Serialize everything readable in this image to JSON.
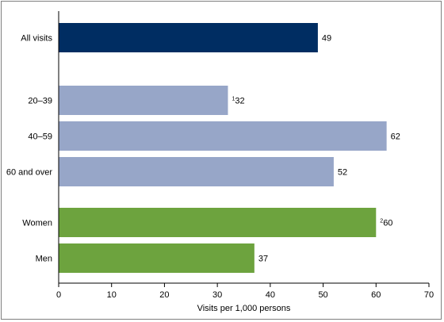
{
  "chart_data": {
    "type": "bar",
    "orientation": "horizontal",
    "categories": [
      "All visits",
      "20–39",
      "40–59",
      "60 and over",
      "Women",
      "Men"
    ],
    "values": [
      49,
      32,
      62,
      52,
      60,
      37
    ],
    "data_labels": [
      "49",
      "32",
      "62",
      "52",
      "60",
      "37"
    ],
    "label_superscripts": [
      "",
      "1",
      "",
      "",
      "2",
      ""
    ],
    "groups": [
      {
        "categories": [
          "All visits"
        ],
        "color": "#002d62"
      },
      {
        "categories": [
          "20–39",
          "40–59",
          "60 and over"
        ],
        "color": "#97a6c8"
      },
      {
        "categories": [
          "Women",
          "Men"
        ],
        "color": "#6da33e"
      }
    ],
    "xlabel": "Visits per 1,000 persons",
    "xlim": [
      0,
      70
    ],
    "xticks": [
      0,
      10,
      20,
      30,
      40,
      50,
      60,
      70
    ],
    "grid": false,
    "legend": "none"
  }
}
